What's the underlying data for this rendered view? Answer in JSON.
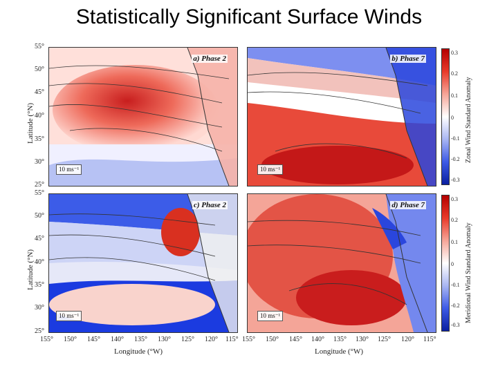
{
  "title": "Statistically Significant Surface Winds",
  "panels": {
    "a": {
      "label": "a) Phase 2",
      "scale": "10 ms⁻¹"
    },
    "b": {
      "label": "b) Phase 7",
      "scale": "10 ms⁻¹"
    },
    "c": {
      "label": "c) Phase 2",
      "scale": "10 ms⁻¹"
    },
    "d": {
      "label": "d) Phase 7",
      "scale": "10 ms⁻¹"
    }
  },
  "y_axis": {
    "label": "Latitude (°N)",
    "ticks": [
      "55°",
      "50°",
      "45°",
      "40°",
      "35°",
      "30°",
      "25°"
    ]
  },
  "x_axis": {
    "label": "Longitude (°W)",
    "ticks": [
      "155°",
      "150°",
      "145°",
      "140°",
      "135°",
      "130°",
      "125°",
      "120°",
      "115°"
    ]
  },
  "colorbars": {
    "zonal": {
      "label": "Zonal Wind Standard Anomaly",
      "ticks": [
        "0.3",
        "0.2",
        "0.1",
        "0",
        "-0.1",
        "-0.2",
        "-0.3"
      ]
    },
    "meridional": {
      "label": "Meridional Wind Standard Anomaly",
      "ticks": [
        "0.3",
        "0.2",
        "0.1",
        "0",
        "-0.1",
        "-0.2",
        "-0.3"
      ]
    }
  },
  "colors": {
    "positive": "#d7191c",
    "negative": "#1a3fd9",
    "neutral": "#ffffff"
  }
}
